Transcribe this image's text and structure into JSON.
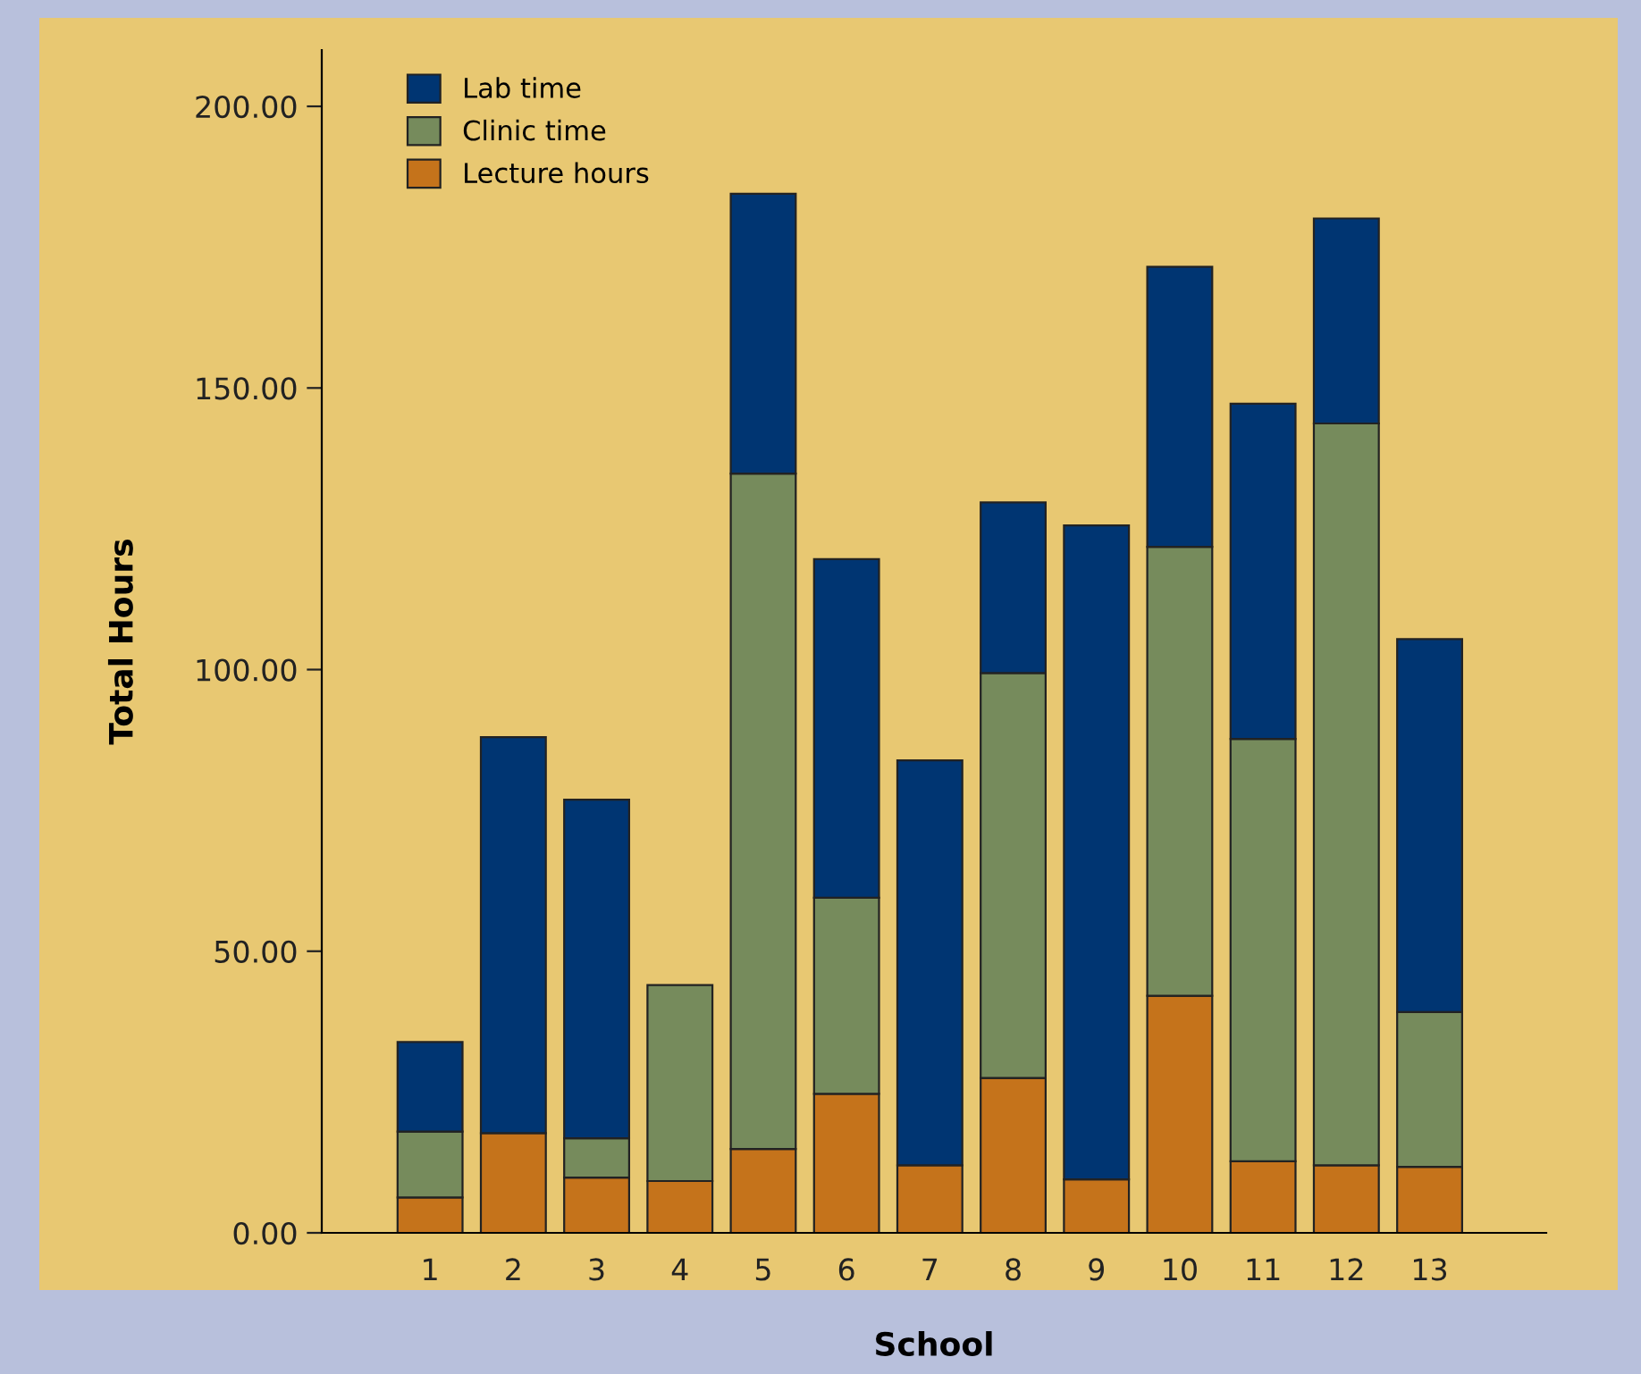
{
  "chart_data": {
    "type": "bar",
    "stacked": true,
    "xlabel": "School",
    "ylabel": "Total Hours",
    "categories": [
      "1",
      "2",
      "3",
      "4",
      "5",
      "6",
      "7",
      "8",
      "9",
      "10",
      "11",
      "12",
      "13"
    ],
    "series": [
      {
        "name": "Lecture hours",
        "color": "#c5731b",
        "values": [
          6.3,
          17.7,
          9.8,
          9.2,
          14.9,
          24.7,
          12.0,
          27.5,
          9.5,
          42.1,
          12.7,
          12.0,
          11.7
        ]
      },
      {
        "name": "Clinic time",
        "color": "#768b5c",
        "values": [
          11.7,
          0,
          7.0,
          34.8,
          119.9,
          34.8,
          0,
          71.9,
          0,
          79.7,
          75.0,
          131.7,
          27.5
        ]
      },
      {
        "name": "Lab time",
        "color": "#003572",
        "values": [
          15.9,
          70.3,
          60.1,
          0,
          49.7,
          60.1,
          71.9,
          30.3,
          116.1,
          49.7,
          59.5,
          36.4,
          66.2
        ]
      }
    ],
    "ylim": [
      0,
      210
    ],
    "yticks": [
      {
        "value": 0,
        "label": "0.00"
      },
      {
        "value": 50,
        "label": "50.00"
      },
      {
        "value": 100,
        "label": "100.00"
      },
      {
        "value": 150,
        "label": "150.00"
      },
      {
        "value": 200,
        "label": "200.00"
      }
    ],
    "grid": false,
    "legend": "top left"
  }
}
